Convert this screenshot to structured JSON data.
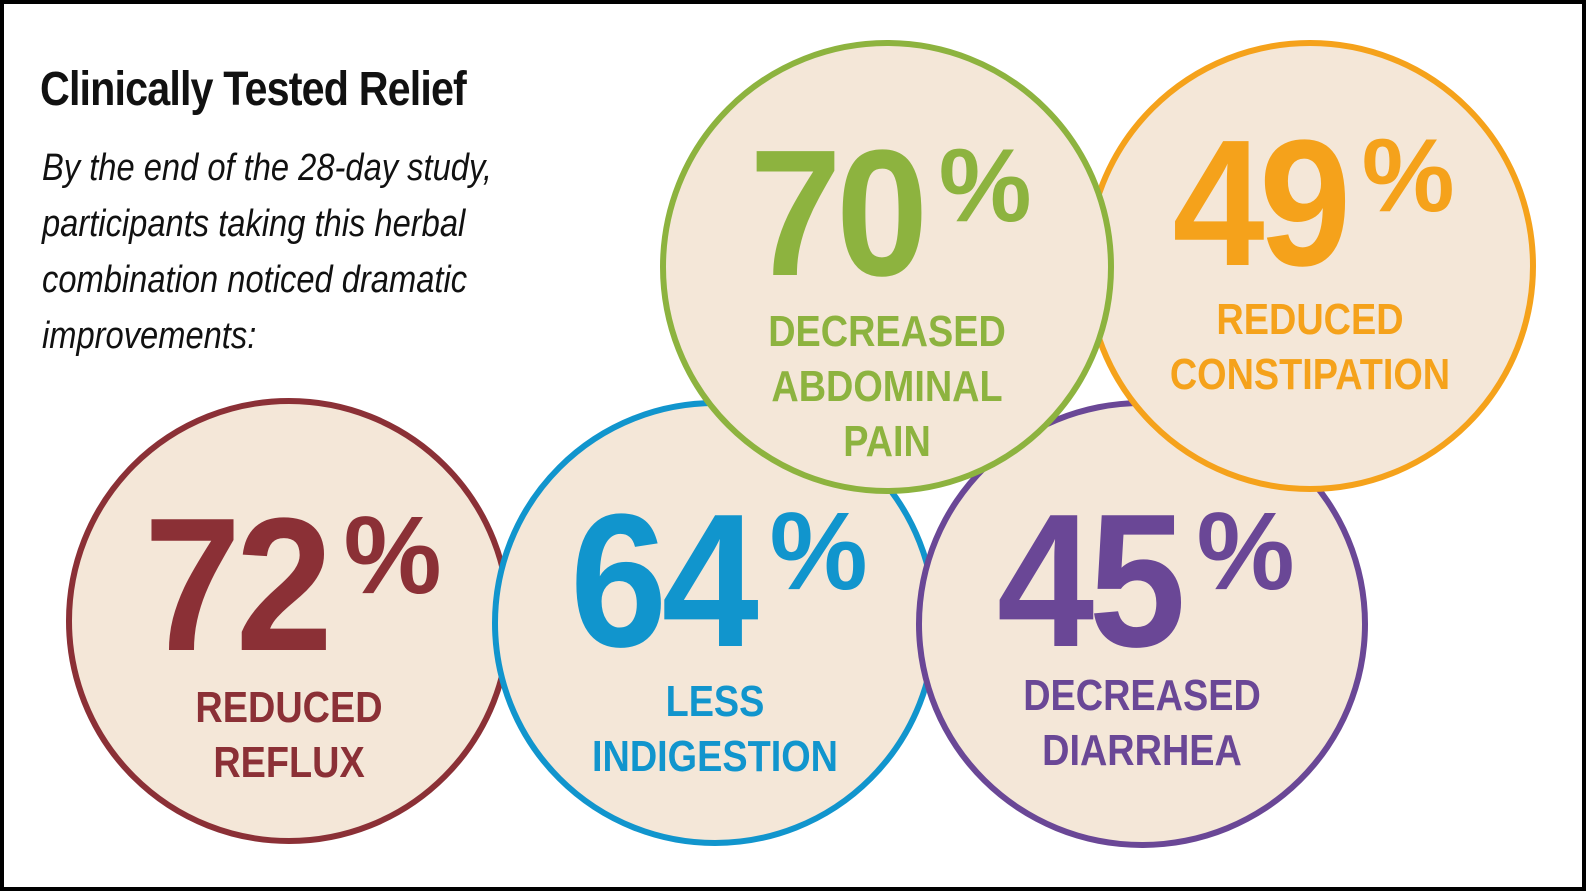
{
  "header": {
    "title": "Clinically Tested Relief",
    "intro": "By the end of the 28-day study, participants taking this herbal combination noticed dramatic improvements:"
  },
  "stats": [
    {
      "id": "abdominal-pain",
      "value": "70",
      "unit": "%",
      "label_lines": [
        "DECREASED",
        "ABDOMINAL",
        "PAIN"
      ],
      "color": "#8db33f"
    },
    {
      "id": "constipation",
      "value": "49",
      "unit": "%",
      "label_lines": [
        "REDUCED",
        "CONSTIPATION"
      ],
      "color": "#f5a21b"
    },
    {
      "id": "reflux",
      "value": "72",
      "unit": "%",
      "label_lines": [
        "REDUCED",
        "REFLUX"
      ],
      "color": "#8b3036"
    },
    {
      "id": "indigestion",
      "value": "64",
      "unit": "%",
      "label_lines": [
        "LESS",
        "INDIGESTION"
      ],
      "color": "#1195cd"
    },
    {
      "id": "diarrhea",
      "value": "45",
      "unit": "%",
      "label_lines": [
        "DECREASED",
        "DIARRHEA"
      ],
      "color": "#6a4796"
    }
  ],
  "colors": {
    "circle_fill": "#f4e7d8",
    "text": "#111111",
    "frame": "#000000"
  }
}
